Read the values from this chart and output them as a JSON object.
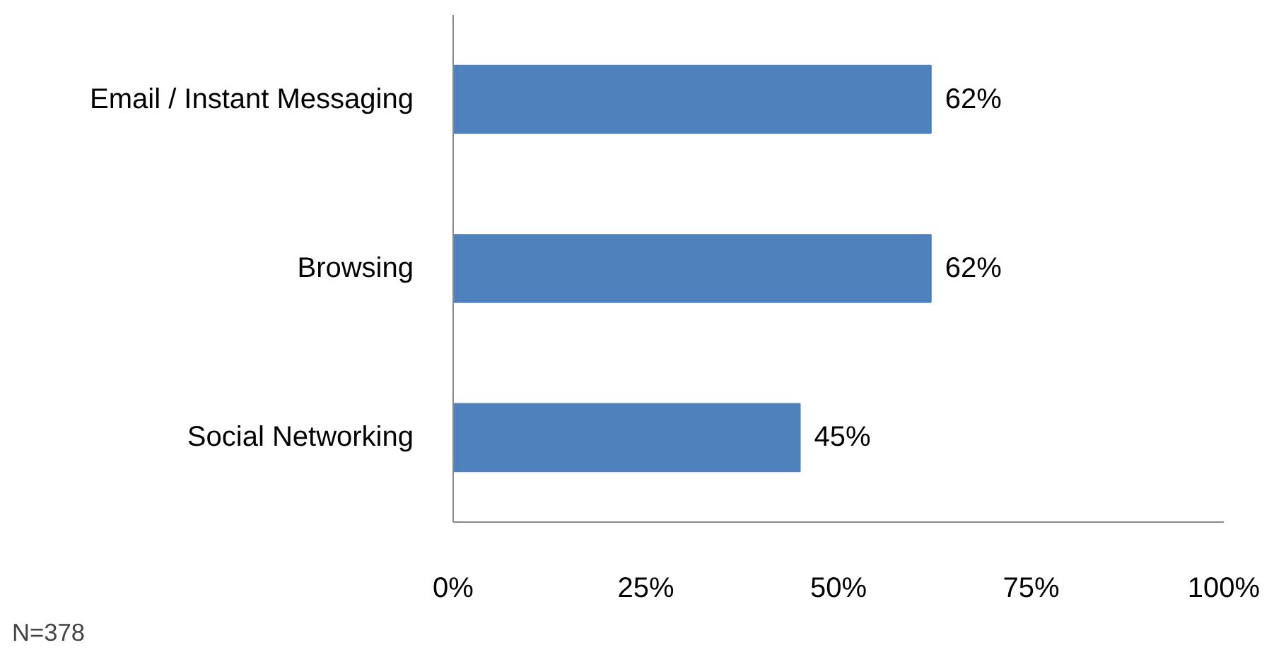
{
  "chart_data": {
    "type": "bar",
    "orientation": "horizontal",
    "categories": [
      "Email / Instant Messaging",
      "Browsing",
      "Social Networking"
    ],
    "values": [
      62,
      62,
      45
    ],
    "color": "#4f81bd",
    "value_labels": [
      "62%",
      "62%",
      "45%"
    ],
    "xlim": [
      0,
      100
    ],
    "xticks": [
      {
        "value": 0,
        "label": "0%"
      },
      {
        "value": 25,
        "label": "25%"
      },
      {
        "value": 50,
        "label": "50%"
      },
      {
        "value": 75,
        "label": "75%"
      },
      {
        "value": 100,
        "label": "100%"
      }
    ],
    "grid": false,
    "annotations": [
      "N=378"
    ]
  }
}
